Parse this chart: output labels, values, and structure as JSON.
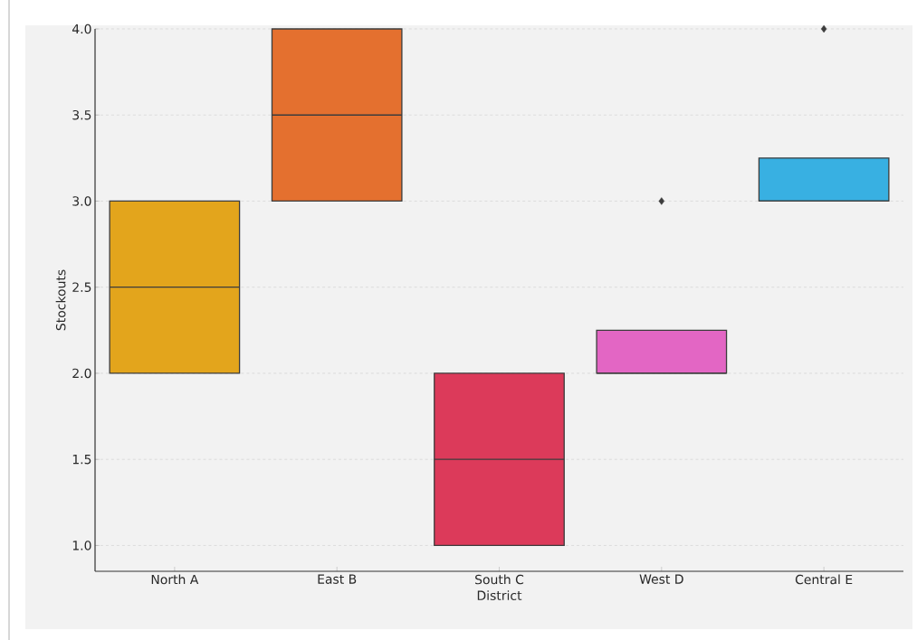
{
  "chart_data": {
    "type": "box",
    "xlabel": "District",
    "ylabel": "Stockouts",
    "categories": [
      "North A",
      "East B",
      "South C",
      "West D",
      "Central E"
    ],
    "boxes": [
      {
        "low": 2,
        "q1": 2,
        "median": 2.5,
        "q3": 3,
        "high": 3
      },
      {
        "low": 3,
        "q1": 3,
        "median": 3.5,
        "q3": 4,
        "high": 4
      },
      {
        "low": 1,
        "q1": 1,
        "median": 1.5,
        "q3": 2,
        "high": 2
      },
      {
        "low": 2,
        "q1": 2,
        "median": 2,
        "q3": 2.25,
        "high": 2.25,
        "outliers": [
          3
        ]
      },
      {
        "low": 3,
        "q1": 3,
        "median": 3,
        "q3": 3.25,
        "high": 3.25,
        "outliers": [
          4
        ]
      }
    ],
    "colors": [
      "#e3a51c",
      "#e4702f",
      "#dc3a5a",
      "#e366c4",
      "#38b0e2"
    ],
    "ylim": [
      0.85,
      4.0
    ],
    "yticks": [
      {
        "value": 1,
        "label": "1.0"
      },
      1.5,
      {
        "value": 2,
        "label": "2.0"
      },
      2.5,
      {
        "value": 3,
        "label": "3.0"
      },
      3.5,
      {
        "value": 4,
        "label": "4.0"
      }
    ],
    "grid": "y",
    "marker": "diamond"
  }
}
